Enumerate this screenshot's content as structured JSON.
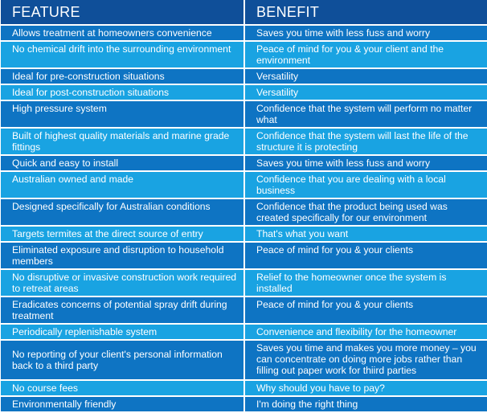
{
  "table": {
    "header": {
      "feature": "FEATURE",
      "benefit": "BENEFIT"
    },
    "colors": {
      "header": "#0f4f99",
      "row_dark": "#0e74c3",
      "row_light": "#19a3e2",
      "text": "#ffffff"
    },
    "rows": [
      {
        "feature": "Allows treatment at homeowners convenience",
        "benefit": "Saves you time with less fuss and worry"
      },
      {
        "feature": "No chemical drift into the surrounding environment",
        "benefit": "Peace of mind for you & your client and the environment"
      },
      {
        "feature": "Ideal for pre-construction situations",
        "benefit": "Versatility"
      },
      {
        "feature": "Ideal for post-construction situations",
        "benefit": "Versatility"
      },
      {
        "feature": "High pressure system",
        "benefit": "Confidence that the system will perform no matter what"
      },
      {
        "feature": "Built of highest quality materials and marine grade fittings",
        "benefit": "Confidence that the system will last the life of the structure it is protecting"
      },
      {
        "feature": "Quick and easy to install",
        "benefit": "Saves you time with less fuss and worry"
      },
      {
        "feature": "Australian owned and made",
        "benefit": "Confidence that you are dealing with a local business"
      },
      {
        "feature": "Designed specifically for Australian conditions",
        "benefit": "Confidence that the product being used was created specifically for our environment"
      },
      {
        "feature": "Targets termites at the direct source of entry",
        "benefit": "That's what you want"
      },
      {
        "feature": "Eliminated exposure and disruption to household members",
        "benefit": "Peace of mind for you & your clients"
      },
      {
        "feature": "No disruptive or invasive construction work required to retreat areas",
        "benefit": "Relief to the homeowner once the system is installed"
      },
      {
        "feature": "Eradicates concerns of potential spray drift during treatment",
        "benefit": "Peace of mind for you & your clients"
      },
      {
        "feature": "Periodically replenishable system",
        "benefit": "Convenience and flexibility for the homeowner"
      },
      {
        "feature": "No reporting of your client's personal information back to a third party",
        "benefit": "Saves you time and makes you more money – you can concentrate on doing more jobs rather than filling out paper work for thiird parties"
      },
      {
        "feature": "No course fees",
        "benefit": "Why should you have to pay?"
      },
      {
        "feature": "Environmentally friendly",
        "benefit": "I'm doing the right thing"
      }
    ]
  }
}
